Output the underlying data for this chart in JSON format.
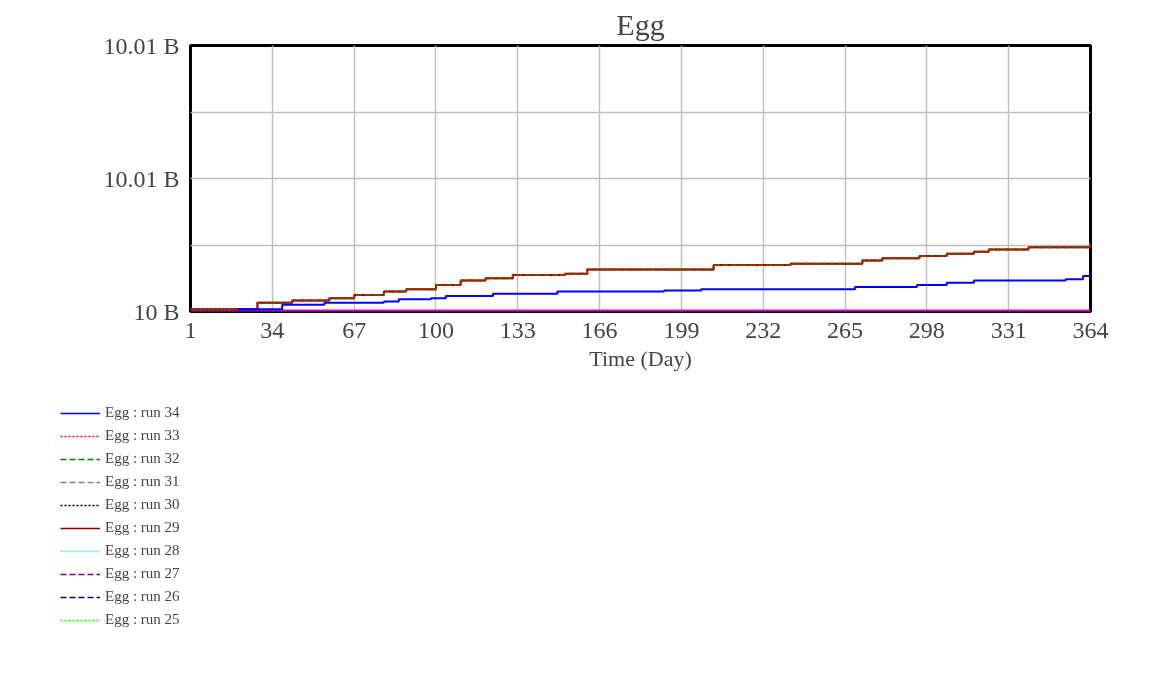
{
  "chart_data": {
    "type": "step",
    "title": "Egg",
    "xlabel": "Time (Day)",
    "xlim": [
      1,
      364
    ],
    "xticks": [
      1,
      34,
      67,
      100,
      133,
      166,
      199,
      232,
      265,
      298,
      331,
      364
    ],
    "ylim": [
      10,
      10.012
    ],
    "yticks": [
      {
        "value": 10,
        "label": "10 B"
      },
      {
        "value": 10.003,
        "label": null
      },
      {
        "value": 10.006,
        "label": "10.01 B"
      },
      {
        "value": 10.009,
        "label": null
      },
      {
        "value": 10.012,
        "label": "10.01 B"
      }
    ],
    "grid": true,
    "legend": "bottom",
    "series": [
      {
        "name": "Egg : run 34",
        "color": "#0000ff",
        "line_style": "solid",
        "x": [
          20,
          38,
          55,
          79,
          85,
          98,
          104,
          123,
          149,
          192,
          207,
          269,
          294,
          306,
          317,
          354,
          361,
          364
        ],
        "values": [
          10.0001,
          10.0003,
          10.0004,
          10.00045,
          10.00055,
          10.0006,
          10.0007,
          10.0008,
          10.0009,
          10.00095,
          10.001,
          10.0011,
          10.0012,
          10.0013,
          10.0014,
          10.00145,
          10.0016,
          10.0016
        ]
      },
      {
        "name": "Egg : run 33",
        "color": "#ff0000",
        "line_style": "dotted",
        "x": [
          1,
          28,
          42,
          57,
          67,
          79,
          88,
          100,
          110,
          120,
          131,
          152,
          161,
          204,
          212,
          243,
          272,
          280,
          295,
          306,
          317,
          323,
          339,
          357,
          364
        ],
        "values": [
          10.0001,
          10.0004,
          10.0005,
          10.0006,
          10.00075,
          10.0009,
          10.001,
          10.0012,
          10.0014,
          10.0015,
          10.00165,
          10.0017,
          10.0019,
          10.0019,
          10.0021,
          10.00215,
          10.0023,
          10.0024,
          10.0025,
          10.0026,
          10.0027,
          10.0028,
          10.0029,
          10.0029,
          10.0031
        ]
      },
      {
        "name": "Egg : run 32",
        "color": "#008000",
        "line_style": "dashed",
        "x": [
          1,
          28,
          42,
          57,
          67,
          79,
          88,
          100,
          110,
          120,
          131,
          152,
          161,
          204,
          212,
          243,
          272,
          280,
          295,
          306,
          317,
          323,
          339,
          357,
          364
        ],
        "values": [
          10.0001,
          10.0004,
          10.0005,
          10.0006,
          10.00075,
          10.0009,
          10.001,
          10.0012,
          10.0014,
          10.0015,
          10.00165,
          10.0017,
          10.0019,
          10.0019,
          10.0021,
          10.00215,
          10.0023,
          10.0024,
          10.0025,
          10.0026,
          10.0027,
          10.0028,
          10.0029,
          10.0029,
          10.0031
        ]
      },
      {
        "name": "Egg : run 31",
        "color": "#808080",
        "line_style": "dashed"
      },
      {
        "name": "Egg : run 30",
        "color": "#000000",
        "line_style": "dotted",
        "x": [
          1,
          364
        ],
        "values": [
          10,
          10
        ]
      },
      {
        "name": "Egg : run 29",
        "color": "#800000",
        "line_style": "solid",
        "x": [
          1,
          28,
          42,
          57,
          67,
          79,
          88,
          100,
          110,
          120,
          131,
          152,
          161,
          204,
          212,
          243,
          272,
          280,
          295,
          306,
          317,
          323,
          339,
          357,
          364
        ],
        "values": [
          10.0001,
          10.0004,
          10.0005,
          10.0006,
          10.00075,
          10.0009,
          10.001,
          10.0012,
          10.0014,
          10.0015,
          10.00165,
          10.0017,
          10.0019,
          10.0019,
          10.0021,
          10.00215,
          10.0023,
          10.0024,
          10.0025,
          10.0026,
          10.0027,
          10.0028,
          10.0029,
          10.0029,
          10.0031
        ]
      },
      {
        "name": "Egg : run 28",
        "color": "#00ffff",
        "line_style": "dotted"
      },
      {
        "name": "Egg : run 27",
        "color": "#800080",
        "line_style": "dashed"
      },
      {
        "name": "Egg : run 26",
        "color": "#000080",
        "line_style": "dashed"
      },
      {
        "name": "Egg : run 25",
        "color": "#00ff00",
        "line_style": "dotted"
      },
      {
        "color": "#ff00ff",
        "line_style": "solid",
        "x": [
          1,
          364
        ],
        "values": [
          10,
          10
        ]
      }
    ]
  }
}
